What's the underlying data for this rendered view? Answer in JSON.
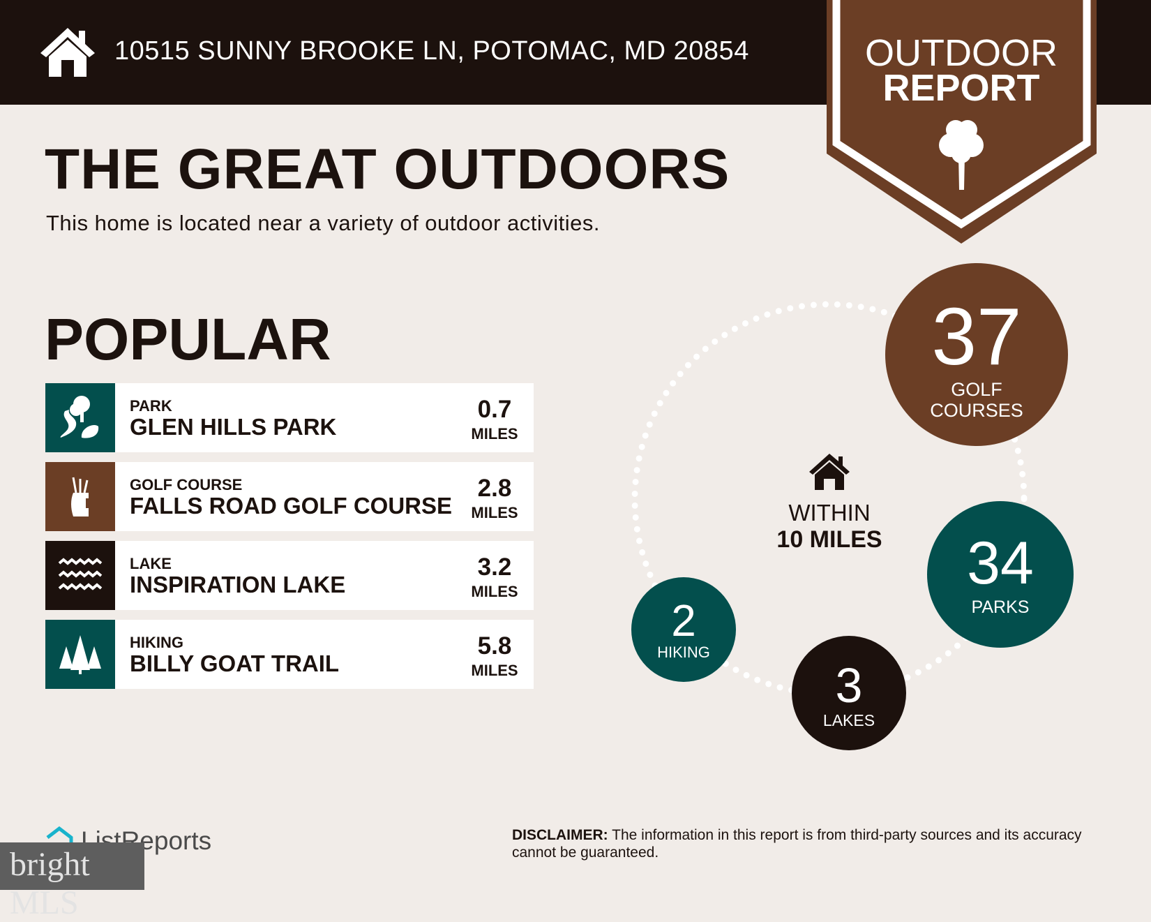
{
  "header": {
    "address": "10515 SUNNY BROOKE LN, POTOMAC, MD 20854",
    "icon": "home-icon"
  },
  "badge": {
    "line1": "OUTDOOR",
    "line2": "REPORT",
    "icon": "tree-icon"
  },
  "title": "THE GREAT OUTDOORS",
  "subtitle": "This home is located near a variety of outdoor activities.",
  "popular": {
    "heading": "POPULAR",
    "items": [
      {
        "category": "PARK",
        "name": "GLEN HILLS PARK",
        "distance": "0.7",
        "unit": "MILES",
        "icon": "park-icon",
        "color": "#034f4d"
      },
      {
        "category": "GOLF COURSE",
        "name": "FALLS ROAD GOLF COURSE",
        "distance": "2.8",
        "unit": "MILES",
        "icon": "golf-bag-icon",
        "color": "#6b3e25"
      },
      {
        "category": "LAKE",
        "name": "INSPIRATION LAKE",
        "distance": "3.2",
        "unit": "MILES",
        "icon": "waves-icon",
        "color": "#1c110d"
      },
      {
        "category": "HIKING",
        "name": "BILLY GOAT TRAIL",
        "distance": "5.8",
        "unit": "MILES",
        "icon": "pine-trees-icon",
        "color": "#034f4d"
      }
    ]
  },
  "radius": {
    "line1": "WITHIN",
    "line2": "10 MILES",
    "icon": "home-icon"
  },
  "counts": [
    {
      "value": "37",
      "label1": "GOLF",
      "label2": "COURSES",
      "color": "#6b3e25"
    },
    {
      "value": "34",
      "label1": "PARKS",
      "label2": "",
      "color": "#034f4d"
    },
    {
      "value": "3",
      "label1": "LAKES",
      "label2": "",
      "color": "#1c110d"
    },
    {
      "value": "2",
      "label1": "HIKING",
      "label2": "",
      "color": "#034f4d"
    }
  ],
  "footer": {
    "disclaimer_label": "DISCLAIMER:",
    "disclaimer_text": " The information in this report is from third-party sources and its accuracy cannot be guaranteed.",
    "brand": "ListReports",
    "watermark": "bright MLS"
  }
}
